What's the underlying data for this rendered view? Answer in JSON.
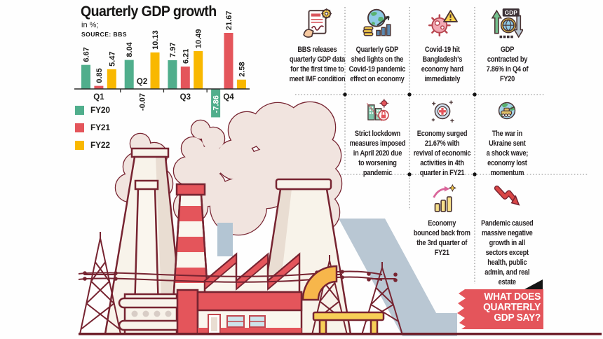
{
  "chart": {
    "title": "Quarterly GDP growth",
    "subtitle": "in %;",
    "source": "SOURCE: BBS",
    "legend": [
      {
        "label": "FY20",
        "color": "#50ae8c"
      },
      {
        "label": "FY21",
        "color": "#e4555b"
      },
      {
        "label": "FY22",
        "color": "#f9b800"
      }
    ]
  },
  "chart_data": {
    "type": "bar",
    "title": "Quarterly GDP growth",
    "unit": "in %",
    "source": "BBS",
    "categories": [
      "Q1",
      "Q2",
      "Q3",
      "Q4"
    ],
    "series": [
      {
        "name": "FY20",
        "color": "#50ae8c",
        "values": [
          6.67,
          8.04,
          7.97,
          -7.86
        ]
      },
      {
        "name": "FY21",
        "color": "#e4555b",
        "values": [
          0.85,
          -0.07,
          6.21,
          21.67
        ]
      },
      {
        "name": "FY22",
        "color": "#f9b800",
        "values": [
          5.47,
          10.13,
          10.49,
          2.58
        ]
      }
    ],
    "ylim": [
      -8.5,
      22
    ],
    "grid": false,
    "legend_position": "bottom-left",
    "value_labels": "rotated-90",
    "category_label_above": [
      "Q2"
    ],
    "notes": "21.67 bar is visually truncated; -7.86 label printed white inside bar"
  },
  "cards": [
    {
      "id": "bbs-release",
      "row": 1,
      "col": 1,
      "icon": "document-signature-gear-icon",
      "lines": [
        [
          {
            "t": "BBS releases"
          }
        ],
        [
          {
            "t": "quarterly GDP data"
          }
        ],
        [
          {
            "t": "for the first time to"
          }
        ],
        [
          {
            "t": "meet IMF condition"
          }
        ]
      ]
    },
    {
      "id": "shed-lights",
      "row": 1,
      "col": 2,
      "icon": "globe-coins-chart-icon",
      "lines": [
        [
          {
            "t": "Quarterly GDP"
          }
        ],
        [
          {
            "t": "shed lights on the"
          }
        ],
        [
          {
            "t": "Covid-19 pandemic"
          }
        ],
        [
          {
            "t": "effect on economy"
          }
        ]
      ]
    },
    {
      "id": "covid-hit",
      "row": 1,
      "col": 3,
      "icon": "virus-warning-icon",
      "lines": [
        [
          {
            "t": "Covid-19 hit"
          }
        ],
        [
          {
            "t": "Bangladesh's"
          }
        ],
        [
          {
            "t": "economy hard"
          }
        ],
        [
          {
            "t": "immediately"
          }
        ]
      ]
    },
    {
      "id": "gdp-contracted",
      "row": 1,
      "col": 4,
      "icon": "gdp-up-down-globe-icon",
      "lines": [
        [
          {
            "t": "GDP"
          }
        ],
        [
          {
            "t": "contracted by"
          }
        ],
        [
          {
            "t": "7.86",
            "b": true
          },
          {
            "t": "% in Q4 of"
          }
        ],
        [
          {
            "t": "FY20"
          }
        ]
      ]
    },
    {
      "id": "lockdown",
      "row": 2,
      "col": 2,
      "icon": "lockdown-city-padlock-icon",
      "lines": [
        [
          {
            "t": "Strict lockdown"
          }
        ],
        [
          {
            "t": "measures imposed"
          }
        ],
        [
          {
            "t": "in April 2020 due"
          }
        ],
        [
          {
            "t": "to worsening"
          }
        ],
        [
          {
            "t": "pandemic"
          }
        ]
      ]
    },
    {
      "id": "economy-surged",
      "row": 2,
      "col": 3,
      "icon": "medical-cross-icon",
      "lines": [
        [
          {
            "t": "Economy surged"
          }
        ],
        [
          {
            "t": "21.67",
            "b": true
          },
          {
            "t": "% with"
          }
        ],
        [
          {
            "t": "revival of economic"
          }
        ],
        [
          {
            "t": "activities in 4th"
          }
        ],
        [
          {
            "t": "quarter in FY21"
          }
        ]
      ]
    },
    {
      "id": "ukraine-war",
      "row": 2,
      "col": 4,
      "icon": "globe-tank-icon",
      "lines": [
        [
          {
            "t": "The war in"
          }
        ],
        [
          {
            "t": "Ukraine sent"
          }
        ],
        [
          {
            "t": "a shock wave;"
          }
        ],
        [
          {
            "t": "economy lost"
          }
        ],
        [
          {
            "t": "momentum"
          }
        ]
      ]
    },
    {
      "id": "bounced-back",
      "row": 3,
      "col": 3,
      "icon": "rebound-bar-chart-icon",
      "lines": [
        [
          {
            "t": "Economy"
          }
        ],
        [
          {
            "t": "bounced back from"
          }
        ],
        [
          {
            "t": "the 3rd quarter of"
          }
        ],
        [
          {
            "t": "FY21"
          }
        ]
      ]
    },
    {
      "id": "negative-growth",
      "row": 3,
      "col": 4,
      "icon": "crash-arrow-icon",
      "lines": [
        [
          {
            "t": "Pandemic caused"
          }
        ],
        [
          {
            "t": "massive negative"
          }
        ],
        [
          {
            "t": "growth in all"
          }
        ],
        [
          {
            "t": "sectors except"
          }
        ],
        [
          {
            "t": "health, public"
          }
        ],
        [
          {
            "t": "admin, and real"
          }
        ],
        [
          {
            "t": "estate"
          }
        ]
      ]
    }
  ],
  "banner": {
    "lines": [
      "WHAT DOES",
      "QUARTERLY",
      "GDP SAY?"
    ],
    "bg": "#e4555b",
    "fold_color": "#141414"
  },
  "colors": {
    "accent_red": "#e4555b",
    "teal": "#50ae8c",
    "yellow": "#f9b800",
    "outline_maroon": "#772431",
    "smoke": "#f1e4df",
    "cream": "#f8f3ea",
    "blue_gray": "#b9c7d3",
    "bottom_rule": "#6e1f2a",
    "divider_gray": "#8b8b8b"
  }
}
